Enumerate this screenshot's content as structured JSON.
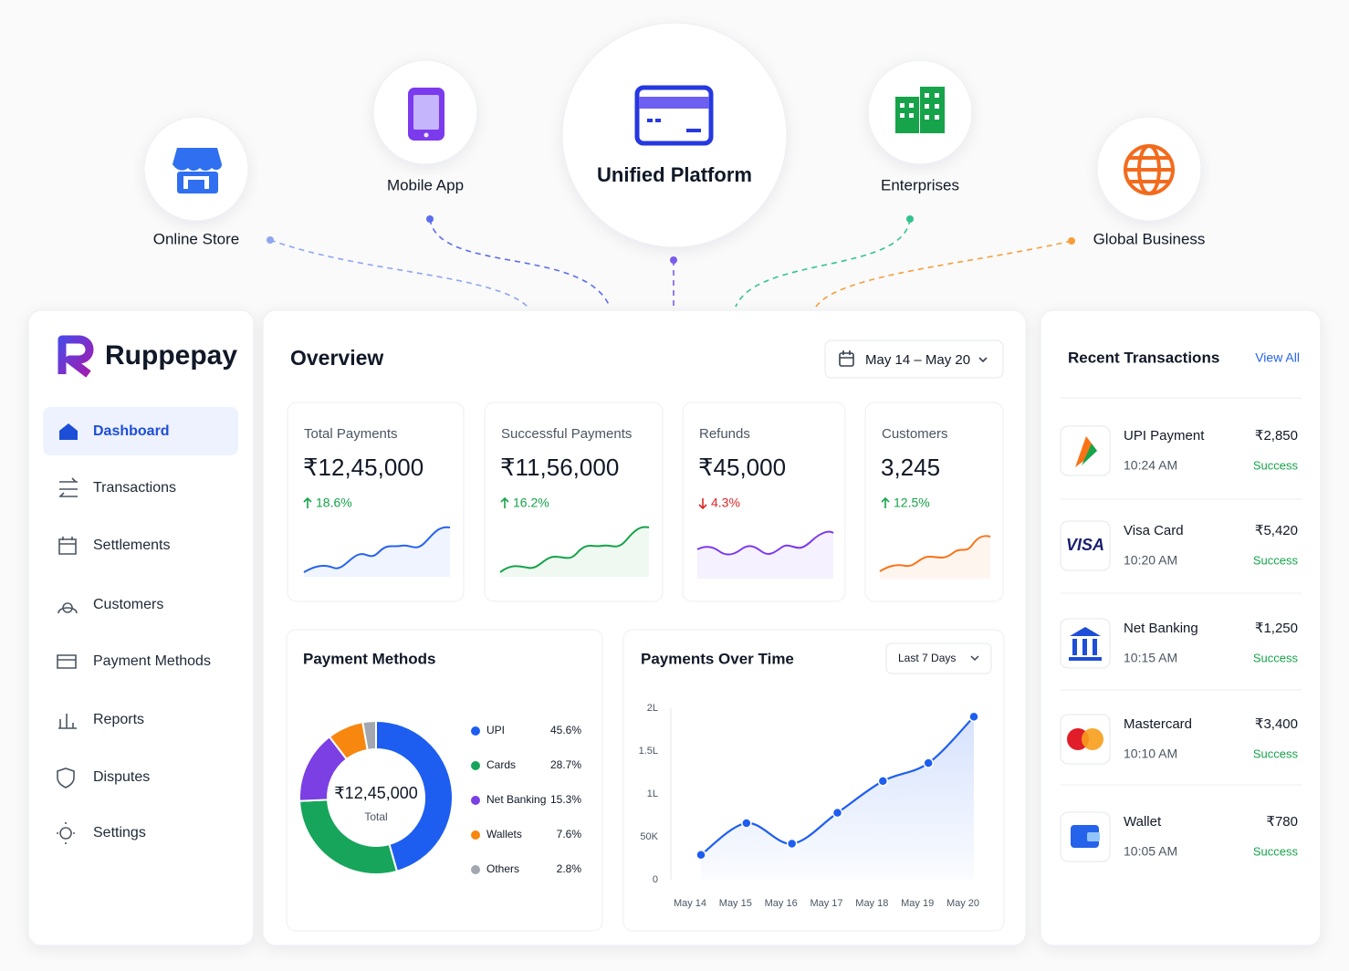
{
  "hub": [
    "Online Store",
    "Mobile App",
    "Unified Platform",
    "Enterprises",
    "Global Business"
  ],
  "brand": "Ruppepay",
  "nav": [
    "Dashboard",
    "Transactions",
    "Settlements",
    "Customers",
    "Payment Methods",
    "Reports",
    "Disputes",
    "Settings"
  ],
  "overview": {
    "title": "Overview",
    "date_range": "May 14 – May 20"
  },
  "stats": [
    {
      "label": "Total Payments",
      "value": "₹12,45,000",
      "change": "18.6%",
      "trend": "up",
      "color": "#2563eb"
    },
    {
      "label": "Successful Payments",
      "value": "₹11,56,000",
      "change": "16.2%",
      "trend": "up",
      "color": "#16a34a"
    },
    {
      "label": "Refunds",
      "value": "₹45,000",
      "change": "4.3%",
      "trend": "down",
      "color": "#7c3aed"
    },
    {
      "label": "Customers",
      "value": "3,245",
      "change": "12.5%",
      "trend": "up",
      "color": "#f97316"
    }
  ],
  "chart_data": [
    {
      "type": "donut",
      "title": "Payment Methods",
      "categories": [
        "UPI",
        "Cards",
        "Net Banking",
        "Wallets",
        "Others"
      ],
      "values": [
        45.6,
        28.7,
        15.3,
        7.6,
        2.8
      ],
      "value_labels": [
        "45.6%",
        "28.7%",
        "15.3%",
        "7.6%",
        "2.8%"
      ],
      "colors": [
        "#1d5ef0",
        "#17a55b",
        "#7b3fe4",
        "#f7870f",
        "#a3a7b0"
      ],
      "center_value": "₹12,45,000",
      "center_label": "Total"
    },
    {
      "type": "line",
      "title": "Payments Over Time",
      "filter": "Last 7 Days",
      "categories": [
        "May 14",
        "May 15",
        "May 16",
        "May 17",
        "May 18",
        "May 19",
        "May 20"
      ],
      "values": [
        29000,
        66000,
        42000,
        78000,
        115000,
        136000,
        190000
      ],
      "ylim": [
        0,
        200000
      ],
      "yticks": [
        0,
        {
          "value": 50000,
          "label": "50K"
        },
        {
          "value": 100000,
          "label": "1L"
        },
        {
          "value": 150000,
          "label": "1.5L"
        },
        {
          "value": 200000,
          "label": "2L"
        }
      ],
      "color": "#1d5ef0",
      "grid": false
    }
  ],
  "transactions_panel": {
    "title": "Recent Transactions",
    "link": "View All"
  },
  "transactions": [
    {
      "name": "UPI Payment",
      "amount": "₹2,850",
      "time": "10:24 AM",
      "status": "Success"
    },
    {
      "name": "Visa Card",
      "logo": "VISA",
      "amount": "₹5,420",
      "time": "10:20 AM",
      "status": "Success"
    },
    {
      "name": "Net Banking",
      "amount": "₹1,250",
      "time": "10:15 AM",
      "status": "Success"
    },
    {
      "name": "Mastercard",
      "amount": "₹3,400",
      "time": "10:10 AM",
      "status": "Success"
    },
    {
      "name": "Wallet",
      "amount": "₹780",
      "time": "10:05 AM",
      "status": "Success"
    }
  ]
}
